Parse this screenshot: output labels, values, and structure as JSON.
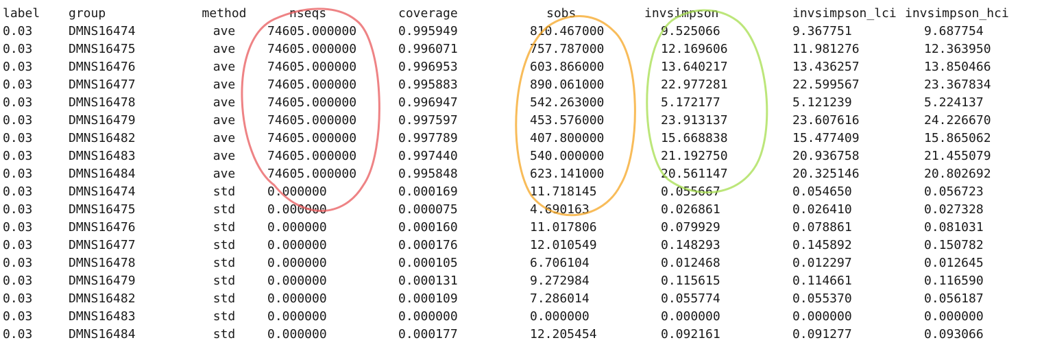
{
  "headers": [
    "label",
    "group",
    "method",
    "nseqs",
    "coverage",
    "sobs",
    "invsimpson",
    "invsimpson_lci",
    "invsimpson_hci"
  ],
  "rows": [
    [
      "0.03",
      "DMNS16474",
      "ave",
      "74605.000000",
      "0.995949",
      "810.467000",
      "9.525066",
      "9.367751",
      "9.687754"
    ],
    [
      "0.03",
      "DMNS16475",
      "ave",
      "74605.000000",
      "0.996071",
      "757.787000",
      "12.169606",
      "11.981276",
      "12.363950"
    ],
    [
      "0.03",
      "DMNS16476",
      "ave",
      "74605.000000",
      "0.996953",
      "603.866000",
      "13.640217",
      "13.436257",
      "13.850466"
    ],
    [
      "0.03",
      "DMNS16477",
      "ave",
      "74605.000000",
      "0.995883",
      "890.061000",
      "22.977281",
      "22.599567",
      "23.367834"
    ],
    [
      "0.03",
      "DMNS16478",
      "ave",
      "74605.000000",
      "0.996947",
      "542.263000",
      "5.172177",
      "5.121239",
      "5.224137"
    ],
    [
      "0.03",
      "DMNS16479",
      "ave",
      "74605.000000",
      "0.997597",
      "453.576000",
      "23.913137",
      "23.607616",
      "24.226670"
    ],
    [
      "0.03",
      "DMNS16482",
      "ave",
      "74605.000000",
      "0.997789",
      "407.800000",
      "15.668838",
      "15.477409",
      "15.865062"
    ],
    [
      "0.03",
      "DMNS16483",
      "ave",
      "74605.000000",
      "0.997440",
      "540.000000",
      "21.192750",
      "20.936758",
      "21.455079"
    ],
    [
      "0.03",
      "DMNS16484",
      "ave",
      "74605.000000",
      "0.995848",
      "623.141000",
      "20.561147",
      "20.325146",
      "20.802692"
    ],
    [
      "0.03",
      "DMNS16474",
      "std",
      "0.000000",
      "0.000169",
      "11.718145",
      "0.055667",
      "0.054650",
      "0.056723"
    ],
    [
      "0.03",
      "DMNS16475",
      "std",
      "0.000000",
      "0.000075",
      "4.690163",
      "0.026861",
      "0.026410",
      "0.027328"
    ],
    [
      "0.03",
      "DMNS16476",
      "std",
      "0.000000",
      "0.000160",
      "11.017806",
      "0.079929",
      "0.078861",
      "0.081031"
    ],
    [
      "0.03",
      "DMNS16477",
      "std",
      "0.000000",
      "0.000176",
      "12.010549",
      "0.148293",
      "0.145892",
      "0.150782"
    ],
    [
      "0.03",
      "DMNS16478",
      "std",
      "0.000000",
      "0.000105",
      "6.706104",
      "0.012468",
      "0.012297",
      "0.012645"
    ],
    [
      "0.03",
      "DMNS16479",
      "std",
      "0.000000",
      "0.000131",
      "9.272984",
      "0.115615",
      "0.114661",
      "0.116590"
    ],
    [
      "0.03",
      "DMNS16482",
      "std",
      "0.000000",
      "0.000109",
      "7.286014",
      "0.055774",
      "0.055370",
      "0.056187"
    ],
    [
      "0.03",
      "DMNS16483",
      "std",
      "0.000000",
      "0.000000",
      "0.000000",
      "0.000000",
      "0.000000",
      "0.000000"
    ],
    [
      "0.03",
      "DMNS16484",
      "std",
      "0.000000",
      "0.000177",
      "12.205454",
      "0.092161",
      "0.091277",
      "0.093066"
    ]
  ],
  "highlights": [
    {
      "column": "nseqs",
      "color": "#e8595c"
    },
    {
      "column": "sobs",
      "color": "#f5a623"
    },
    {
      "column": "invsimpson",
      "color": "#a6de4e"
    }
  ]
}
